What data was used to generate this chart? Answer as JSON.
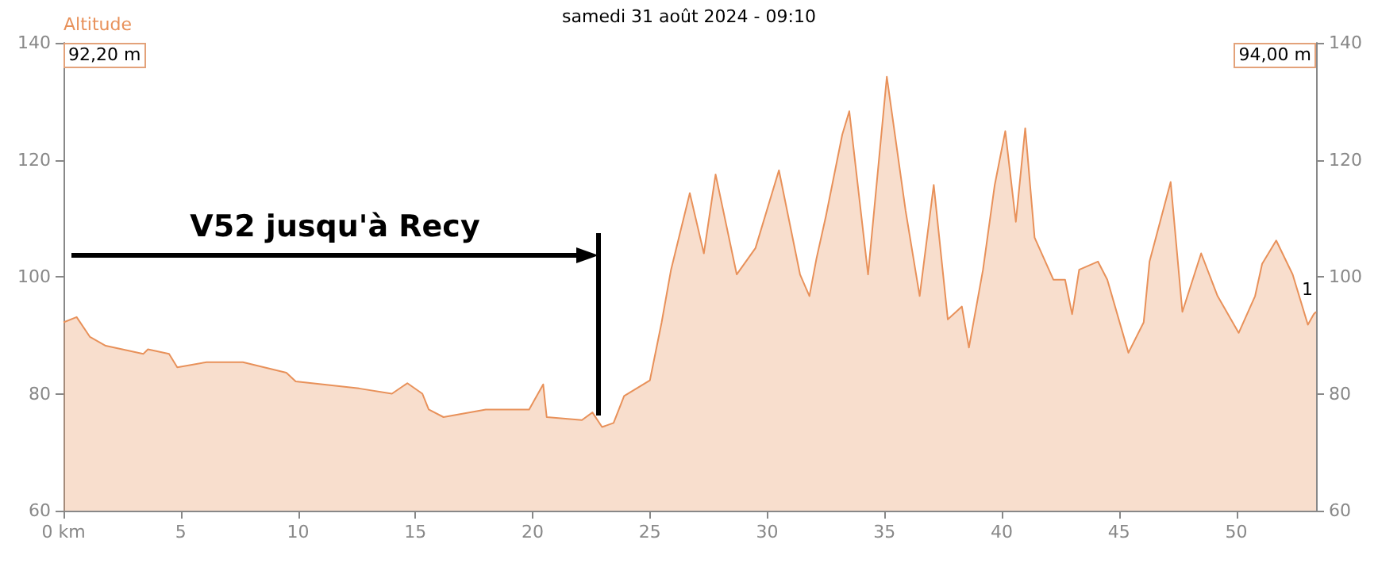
{
  "chart_data": {
    "type": "area",
    "title": "samedi 31 août 2024 - 09:10",
    "ylabel": "Altitude",
    "x": [
      0,
      0.56,
      1.13,
      1.8,
      3.4,
      3.6,
      4.5,
      4.85,
      6.1,
      7.65,
      9.5,
      9.9,
      12.6,
      14.0,
      14.66,
      15.3,
      15.57,
      16.2,
      18.0,
      19.85,
      20.45,
      20.6,
      22.1,
      22.55,
      22.96,
      23.45,
      23.9,
      25.0,
      25.5,
      25.9,
      26.7,
      27.3,
      27.8,
      28.7,
      29.5,
      30.5,
      31.4,
      31.8,
      32.1,
      32.5,
      33.2,
      33.5,
      34.3,
      35.1,
      35.9,
      36.5,
      37.1,
      37.7,
      38.3,
      38.6,
      39.2,
      39.7,
      40.15,
      40.6,
      41.0,
      41.4,
      42.2,
      42.7,
      43.0,
      43.3,
      44.1,
      44.5,
      45.4,
      46.05,
      46.3,
      47.2,
      47.7,
      48.5,
      49.2,
      50.1,
      50.8,
      51.1,
      51.7,
      52.4,
      53.05,
      53.3,
      53.4
    ],
    "series": [
      {
        "color": "#e8915a",
        "values": [
          92.2,
          93.1,
          89.7,
          88.2,
          86.8,
          87.6,
          86.8,
          84.5,
          85.4,
          85.4,
          83.6,
          82.1,
          80.9,
          80.0,
          81.8,
          80.0,
          77.3,
          76.0,
          77.3,
          77.3,
          81.6,
          76.0,
          75.5,
          76.8,
          74.3,
          75.0,
          79.6,
          82.3,
          92.2,
          101.2,
          114.3,
          104,
          117.5,
          100.4,
          104.9,
          118.2,
          100.4,
          96.7,
          103.1,
          110.3,
          124.3,
          128.3,
          100.4,
          134.2,
          111.3,
          96.7,
          115.7,
          92.7,
          94.9,
          87.9,
          101.2,
          115.7,
          124.9,
          109.4,
          125.4,
          106.7,
          99.5,
          99.5,
          93.6,
          101.2,
          102.6,
          99.5,
          87.0,
          92.2,
          102.6,
          116.2,
          94.0,
          104,
          96.7,
          90.4,
          96.7,
          102.2,
          106.2,
          100.4,
          91.8,
          93.6,
          94.0
        ]
      }
    ],
    "xlim": [
      0,
      53.4
    ],
    "xticks": [
      {
        "value": 0,
        "label": "0 km"
      },
      5,
      10,
      15,
      20,
      25,
      30,
      35,
      40,
      45,
      50
    ],
    "ylim": [
      60,
      140
    ],
    "yticks": [
      60,
      80,
      100,
      120,
      140
    ],
    "y2lim": [
      60,
      140
    ],
    "y2ticks": [
      60,
      80,
      100,
      120,
      140
    ],
    "annotations": [
      "92,20 m",
      "94,00 m",
      "1",
      "V52 jusqu'à Recy"
    ],
    "grid": false,
    "marker": "none",
    "line_style": "solid"
  }
}
